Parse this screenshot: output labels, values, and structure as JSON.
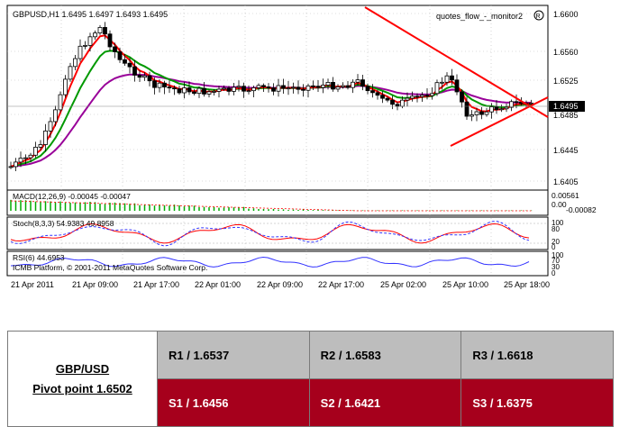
{
  "chart": {
    "header": "GBPUSD,H1  1.6495  1.6497  1.6493  1.6495",
    "indicator_label": "quotes_flow_-_monitor2",
    "price_labels": [
      "1.6600",
      "1.6560",
      "1.6525",
      "1.6485",
      "1.6445",
      "1.6405"
    ],
    "current_price": "1.6495",
    "macd_label": "MACD(12,26,9) -0.00045 -0.00047",
    "macd_scale": [
      "0.00561",
      "0.00",
      "-0.00082"
    ],
    "stoch_label": "Stoch(8,3,3) 54.9383 49.8958",
    "stoch_scale": [
      "100",
      "80",
      "20",
      "0"
    ],
    "rsi_label": "RSI(6) 44.6953",
    "rsi_scale": [
      "100",
      "70",
      "30",
      "0"
    ],
    "copyright": "ICMB Platform, © 2001-2011 MetaQuotes Software Corp.",
    "time_labels": [
      "21 Apr 2011",
      "21 Apr 09:00",
      "21 Apr 17:00",
      "22 Apr 01:00",
      "22 Apr 09:00",
      "22 Apr 17:00",
      "25 Apr 02:00",
      "25 Apr 10:00",
      "25 Apr 18:00"
    ],
    "colors": {
      "ma_fast": "#ff0000",
      "ma_mid": "#009900",
      "ma_slow": "#990099",
      "trendline": "#ff0000",
      "candle": "#000000"
    }
  },
  "pivot": {
    "pair": "GBP/USD",
    "pivot_point": "Pivot point 1.6502",
    "r1": "R1 / 1.6537",
    "r2": "R2 / 1.6583",
    "r3": "R3 / 1.6618",
    "s1": "S1 / 1.6456",
    "s2": "S2 / 1.6421",
    "s3": "S3 / 1.6375"
  }
}
